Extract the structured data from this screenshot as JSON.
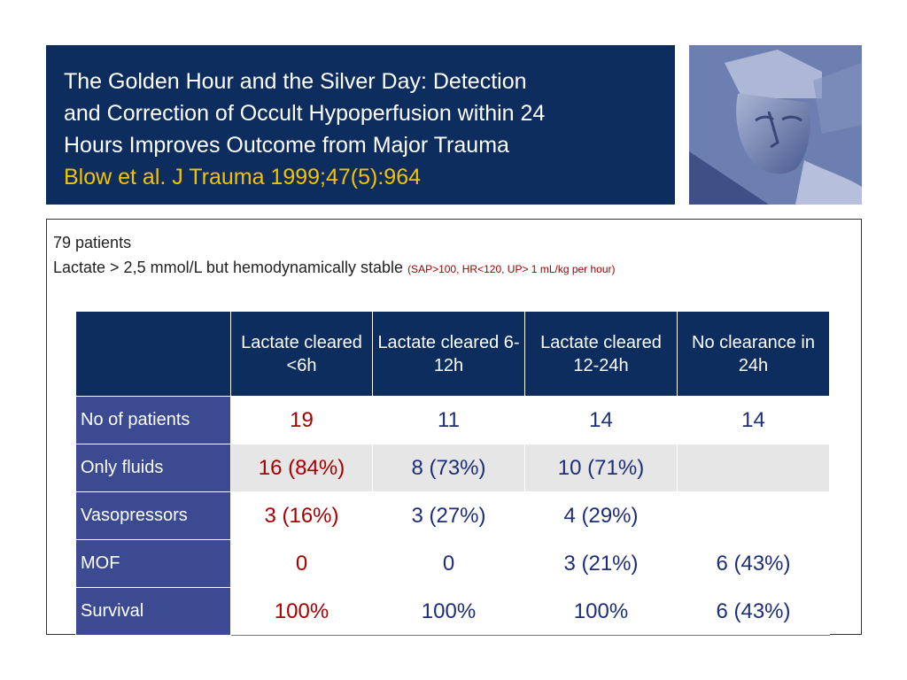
{
  "title": {
    "line1": "The Golden Hour and the Silver Day: Detection",
    "line2": "and Correction of Occult Hypoperfusion within 24",
    "line3": "Hours Improves Outcome from Major Trauma",
    "citation": "Blow et al. J Trauma 1999;47(5):964"
  },
  "intro": {
    "patients": "79 patients",
    "criteria": "Lactate > 2,5 mmol/L but hemodynamically stable",
    "criteria_note": "(SAP>100, HR<120, UP> 1 mL/kg per hour)"
  },
  "table": {
    "headers": [
      "",
      "Lactate cleared <6h",
      "Lactate cleared 6-12h",
      "Lactate cleared 12-24h",
      "No clearance in 24h"
    ],
    "rows": [
      {
        "label": "No of patients",
        "cells": [
          "19",
          "11",
          "14",
          "14"
        ]
      },
      {
        "label": "Only fluids",
        "cells": [
          "16 (84%)",
          "8 (73%)",
          "10 (71%)",
          ""
        ]
      },
      {
        "label": "Vasopressors",
        "cells": [
          "3 (16%)",
          "3 (27%)",
          "4 (29%)",
          ""
        ]
      },
      {
        "label": "MOF",
        "cells": [
          "0",
          "0",
          "3 (21%)",
          "6 (43%)"
        ]
      },
      {
        "label": "Survival",
        "cells": [
          "100%",
          "100%",
          "100%",
          "6 (43%)"
        ]
      }
    ]
  },
  "colors": {
    "title_bg": "#0c2d5e",
    "citation": "#f5c200",
    "row_header_bg": "#3c4a91",
    "first_col_value": "#a80000",
    "value": "#1d2e78",
    "note": "#a00000"
  }
}
